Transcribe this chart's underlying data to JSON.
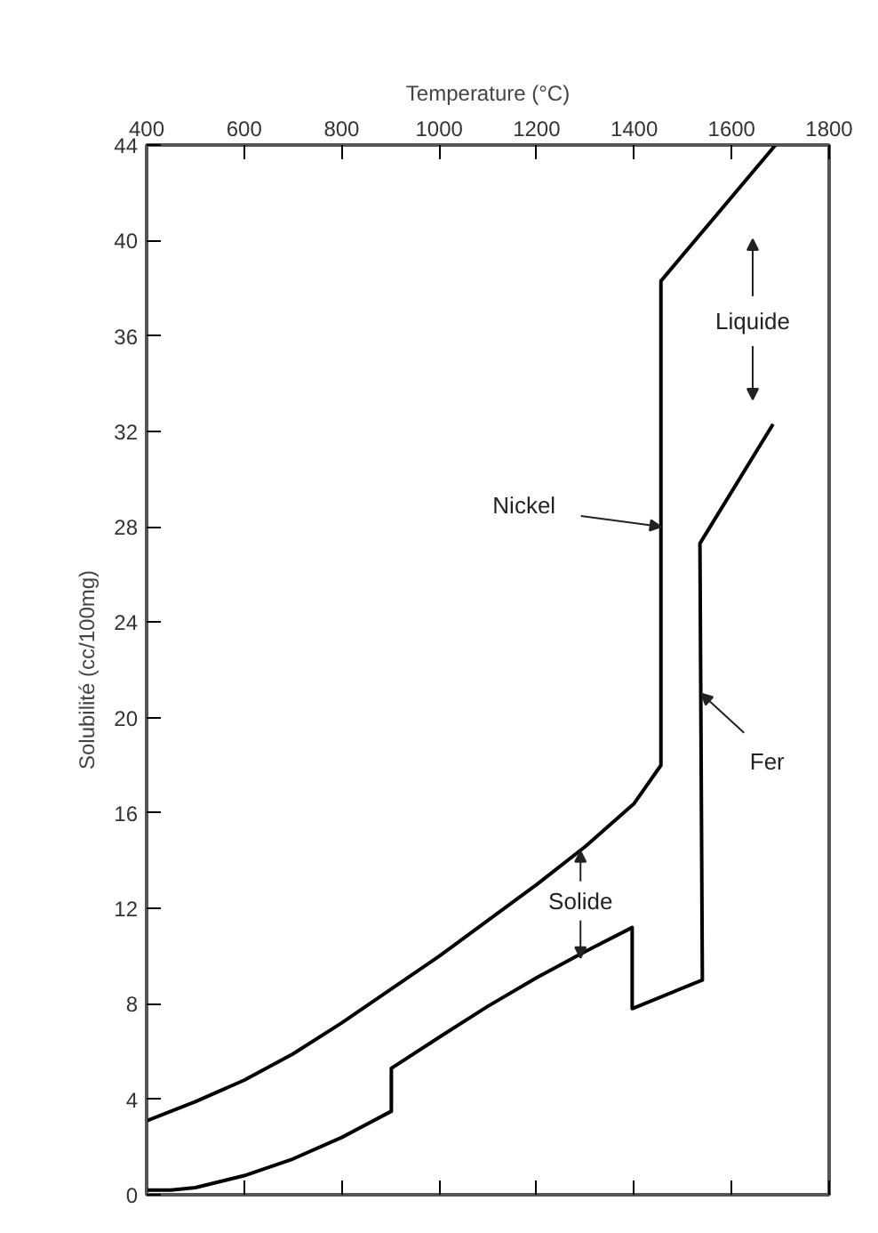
{
  "chart_data": {
    "type": "line",
    "xlabel": "Temperature (°C)",
    "ylabel": "Solubilité (cc/100mg)",
    "xlim": [
      400,
      1800
    ],
    "ylim": [
      0,
      44
    ],
    "xticks": [
      400,
      600,
      800,
      1000,
      1200,
      1400,
      1600,
      1800
    ],
    "yticks": [
      0,
      4,
      8,
      12,
      16,
      20,
      24,
      28,
      32,
      36,
      40,
      44
    ],
    "grid": false,
    "marker": "none",
    "line_style": "solid",
    "series": [
      {
        "color": "#000000",
        "x": [
          400,
          500,
          600,
          700,
          800,
          900,
          1000,
          1100,
          1200,
          1300,
          1400,
          1455,
          1455,
          1690
        ],
        "values": [
          3.1,
          3.9,
          4.8,
          5.9,
          7.2,
          8.6,
          10.0,
          11.5,
          13.0,
          14.6,
          16.4,
          18.0,
          38.3,
          44.0
        ]
      },
      {
        "color": "#000000",
        "x": [
          400,
          450,
          500,
          600,
          700,
          800,
          902,
          902,
          1000,
          1100,
          1200,
          1300,
          1396,
          1396,
          1540,
          1535,
          1685
        ],
        "values": [
          0.2,
          0.2,
          0.3,
          0.8,
          1.5,
          2.4,
          3.5,
          5.3,
          6.6,
          7.9,
          9.1,
          10.2,
          11.2,
          7.8,
          9.0,
          27.3,
          32.3
        ]
      }
    ],
    "annotations": [
      {
        "text": "Nickel",
        "x": 1455,
        "y": 28
      },
      {
        "text": "Fer",
        "x": 1538,
        "y": 21
      },
      "Liquide",
      {
        "text": "Solide",
        "x": 1290,
        "y": 14.4
      }
    ]
  }
}
